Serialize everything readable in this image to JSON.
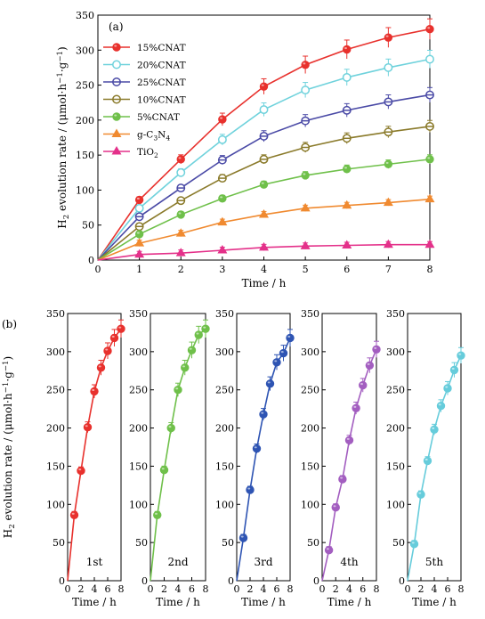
{
  "chart_data": [
    {
      "type": "line",
      "panel_label": "(a)",
      "xlabel": "Time / h",
      "ylabel": "H2 evolution rate / (μmol·h⁻¹·g⁻¹)",
      "xlim": [
        0,
        8
      ],
      "ylim": [
        0,
        350
      ],
      "xticks": [
        0,
        1,
        2,
        3,
        4,
        5,
        6,
        7,
        8
      ],
      "yticks": [
        0,
        50,
        100,
        150,
        200,
        250,
        300,
        350
      ],
      "legend_position": "top-left",
      "x": [
        0,
        1,
        2,
        3,
        4,
        5,
        6,
        7,
        8
      ],
      "series": [
        {
          "name": "15%CNAT",
          "color": "#e8312d",
          "marker": "circle-filled",
          "values": [
            0,
            86,
            144,
            201,
            248,
            279,
            301,
            318,
            330
          ]
        },
        {
          "name": "20%CNAT",
          "color": "#6fd2dc",
          "marker": "circle-open",
          "values": [
            0,
            74,
            125,
            172,
            215,
            243,
            261,
            275,
            287
          ]
        },
        {
          "name": "25%CNAT",
          "color": "#4a4aa6",
          "marker": "circle-half",
          "values": [
            0,
            62,
            103,
            143,
            177,
            199,
            214,
            226,
            236
          ]
        },
        {
          "name": "10%CNAT",
          "color": "#8a7a2a",
          "marker": "circle-half",
          "values": [
            0,
            48,
            85,
            117,
            144,
            161,
            174,
            183,
            191
          ]
        },
        {
          "name": "5%CNAT",
          "color": "#6fc04a",
          "marker": "circle-filled",
          "values": [
            0,
            37,
            65,
            88,
            108,
            121,
            130,
            137,
            144
          ]
        },
        {
          "name": "g-C3N4",
          "color": "#f08a30",
          "marker": "triangle",
          "values": [
            0,
            24,
            38,
            54,
            65,
            74,
            78,
            82,
            87
          ]
        },
        {
          "name": "TiO2",
          "color": "#e4318a",
          "marker": "triangle",
          "values": [
            0,
            8,
            10,
            14,
            18,
            20,
            21,
            22,
            22
          ]
        }
      ]
    },
    {
      "type": "line",
      "panel_label": "(b)",
      "xlabel": "Time / h",
      "ylabel": "H2 evolution rate / (μmol·h⁻¹·g⁻¹)",
      "xlim": [
        0,
        8
      ],
      "ylim": [
        0,
        350
      ],
      "xticks": [
        0,
        2,
        4,
        6,
        8
      ],
      "yticks": [
        0,
        50,
        100,
        150,
        200,
        250,
        300,
        350
      ],
      "panels": [
        {
          "name": "1st",
          "color": "#e8312d",
          "x": [
            0,
            1,
            2,
            3,
            4,
            5,
            6,
            7,
            8
          ],
          "values": [
            0,
            86,
            144,
            201,
            248,
            279,
            301,
            318,
            330
          ]
        },
        {
          "name": "2nd",
          "color": "#6fc04a",
          "x": [
            0,
            1,
            2,
            3,
            4,
            5,
            6,
            7,
            8
          ],
          "values": [
            0,
            86,
            145,
            200,
            250,
            279,
            302,
            322,
            330
          ]
        },
        {
          "name": "3rd",
          "color": "#2e54b3",
          "x": [
            0,
            1,
            2,
            3,
            4,
            5,
            6,
            7,
            8
          ],
          "values": [
            0,
            56,
            119,
            173,
            218,
            258,
            286,
            298,
            318
          ]
        },
        {
          "name": "4th",
          "color": "#a35ec0",
          "x": [
            0,
            1,
            2,
            3,
            4,
            5,
            6,
            7,
            8
          ],
          "values": [
            0,
            40,
            96,
            133,
            184,
            226,
            256,
            282,
            303
          ]
        },
        {
          "name": "5th",
          "color": "#66ccdb",
          "x": [
            0,
            1,
            2,
            3,
            4,
            5,
            6,
            7,
            8
          ],
          "values": [
            0,
            48,
            113,
            157,
            198,
            229,
            252,
            276,
            295
          ]
        }
      ]
    }
  ]
}
